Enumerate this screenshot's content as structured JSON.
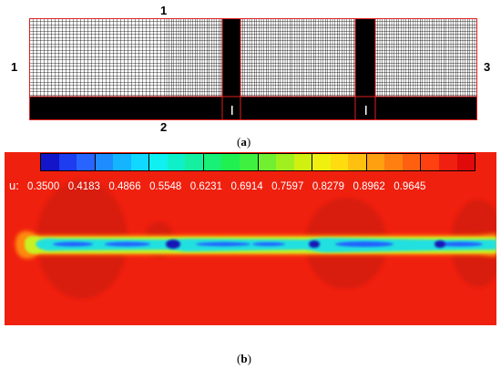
{
  "panel_a": {
    "boundary_labels": {
      "top": "1",
      "left": "1",
      "bottom": "2",
      "right": "3"
    },
    "caption": {
      "open": "(",
      "letter": "a",
      "close": ")"
    }
  },
  "panel_b": {
    "variable_label": "u:",
    "colorbar_ticks": [
      "0.3500",
      "0.4183",
      "0.4866",
      "0.5548",
      "0.6231",
      "0.6914",
      "0.7597",
      "0.8279",
      "0.8962",
      "0.9645"
    ],
    "colorbar_colors": [
      "#1414c8",
      "#1e3cf0",
      "#2864ff",
      "#1e8cff",
      "#14b4ff",
      "#10d8ff",
      "#10f0f0",
      "#10f0c8",
      "#14f0a0",
      "#18f078",
      "#20f050",
      "#40f040",
      "#70f030",
      "#a0f020",
      "#d0f010",
      "#f0f010",
      "#ffdc10",
      "#ffc010",
      "#ffa010",
      "#ff8010",
      "#ff6010",
      "#ff4010",
      "#f02010",
      "#e00a0a"
    ],
    "colors": {
      "background_field": "#f0200f"
    },
    "caption": {
      "open": "(",
      "letter": "b",
      "close": ")"
    }
  }
}
